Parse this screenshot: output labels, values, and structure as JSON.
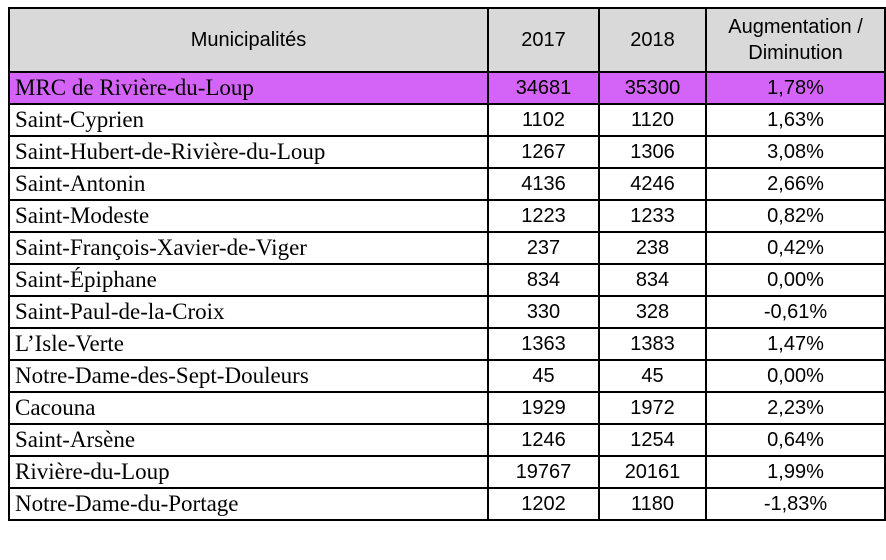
{
  "header": {
    "col_municipalites": "Municipalités",
    "col_2017": "2017",
    "col_2018": "2018",
    "col_change_line1": "Augmentation /",
    "col_change_line2": "Diminution"
  },
  "rows": [
    {
      "name": "MRC de Rivière-du-Loup",
      "y2017": "34681",
      "y2018": "35300",
      "change": "1,78%",
      "highlight": true
    },
    {
      "name": "Saint-Cyprien",
      "y2017": "1102",
      "y2018": "1120",
      "change": "1,63%"
    },
    {
      "name": "Saint-Hubert-de-Rivière-du-Loup",
      "y2017": "1267",
      "y2018": "1306",
      "change": "3,08%"
    },
    {
      "name": "Saint-Antonin",
      "y2017": "4136",
      "y2018": "4246",
      "change": "2,66%"
    },
    {
      "name": "Saint-Modeste",
      "y2017": "1223",
      "y2018": "1233",
      "change": "0,82%"
    },
    {
      "name": "Saint-François-Xavier-de-Viger",
      "y2017": "237",
      "y2018": "238",
      "change": "0,42%"
    },
    {
      "name": "Saint-Épiphane",
      "y2017": "834",
      "y2018": "834",
      "change": "0,00%"
    },
    {
      "name": "Saint-Paul-de-la-Croix",
      "y2017": "330",
      "y2018": "328",
      "change": "-0,61%"
    },
    {
      "name": "L’Isle-Verte",
      "y2017": "1363",
      "y2018": "1383",
      "change": "1,47%"
    },
    {
      "name": "Notre-Dame-des-Sept-Douleurs",
      "y2017": "45",
      "y2018": "45",
      "change": "0,00%"
    },
    {
      "name": "Cacouna",
      "y2017": "1929",
      "y2018": "1972",
      "change": "2,23%"
    },
    {
      "name": "Saint-Arsène",
      "y2017": "1246",
      "y2018": "1254",
      "change": "0,64%"
    },
    {
      "name": "Rivière-du-Loup",
      "y2017": "19767",
      "y2018": "20161",
      "change": "1,99%"
    },
    {
      "name": "Notre-Dame-du-Portage",
      "y2017": "1202",
      "y2018": "1180",
      "change": "-1,83%"
    }
  ],
  "colors": {
    "header_bg": "#d9d9d9",
    "highlight_bg": "#d464f8"
  }
}
